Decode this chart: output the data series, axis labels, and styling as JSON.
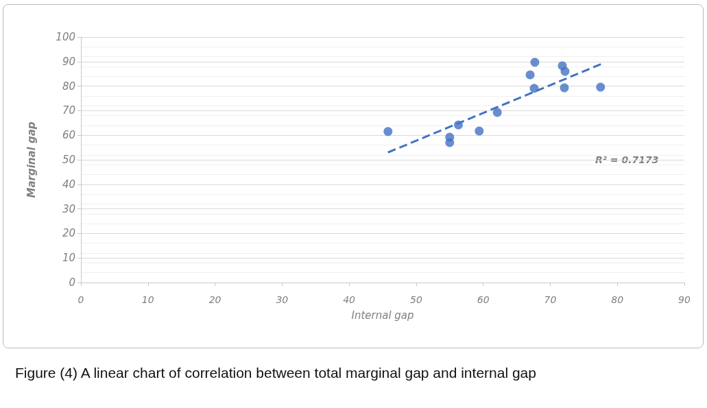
{
  "chart_data": {
    "type": "scatter",
    "xlabel": "Internal gap",
    "ylabel": "Marginal gap",
    "xlim": [
      0,
      90
    ],
    "xticks": [
      0,
      10,
      20,
      30,
      40,
      50,
      60,
      70,
      80,
      90
    ],
    "ylim": [
      0,
      100
    ],
    "yticks": [
      0,
      10,
      20,
      30,
      40,
      50,
      60,
      70,
      80,
      90,
      100
    ],
    "grid": "y",
    "marker": "circle",
    "series": [
      {
        "type": "scatter",
        "color": "#4472c4",
        "x": [
          45.8,
          55.0,
          55.0,
          56.3,
          59.4,
          62.1,
          67.0,
          67.7,
          67.6,
          71.8,
          72.2,
          72.1,
          77.5
        ],
        "values": [
          61.5,
          59.2,
          57.0,
          64.2,
          61.7,
          69.3,
          84.6,
          89.7,
          79.1,
          88.3,
          86.0,
          79.3,
          79.6
        ]
      },
      {
        "type": "line",
        "color": "#4472c4",
        "line_style": "dashed",
        "marker": "none",
        "x": [
          45.8,
          77.6
        ],
        "values": [
          53,
          89
        ]
      }
    ],
    "annotations": [
      "R² = 0.7173",
      "Figure (4) A linear chart of correlation between total marginal gap and internal gap"
    ]
  }
}
